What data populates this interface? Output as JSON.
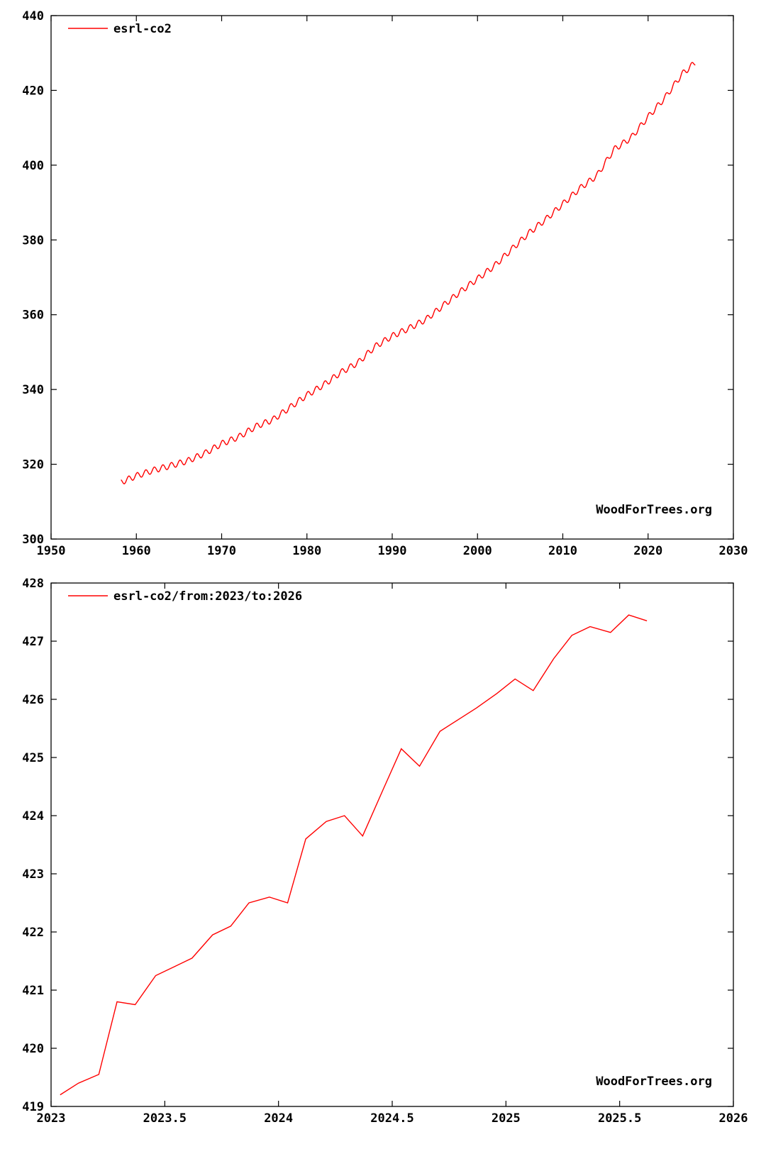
{
  "chart_data": [
    {
      "type": "line",
      "title": "",
      "xlabel": "",
      "ylabel": "",
      "xlim": [
        1950,
        2030
      ],
      "ylim": [
        300,
        440
      ],
      "x_ticks": [
        1950,
        1960,
        1970,
        1980,
        1990,
        2000,
        2010,
        2020,
        2030
      ],
      "x_tick_labels": [
        "1950",
        "1960",
        "1970",
        "1980",
        "1990",
        "2000",
        "2010",
        "2020",
        "2030"
      ],
      "y_ticks": [
        300,
        320,
        340,
        360,
        380,
        400,
        420,
        440
      ],
      "y_tick_labels": [
        "300",
        "320",
        "340",
        "360",
        "380",
        "400",
        "420",
        "440"
      ],
      "grid": false,
      "legend_position": "top-left",
      "watermark": "WoodForTrees.org",
      "series": [
        {
          "name": "esrl-co2",
          "color": "#ff0000",
          "seasonal_amplitude": 0.8,
          "x": [
            1958.2,
            1960,
            1962,
            1964,
            1966,
            1968,
            1970,
            1972,
            1974,
            1976,
            1978,
            1980,
            1982,
            1984,
            1986,
            1988,
            1990,
            1992,
            1994,
            1996,
            1998,
            2000,
            2002,
            2004,
            2006,
            2008,
            2010,
            2012,
            2014,
            2016,
            2018,
            2020,
            2022,
            2024,
            2025.6
          ],
          "y": [
            315.2,
            316.9,
            318.4,
            319.6,
            320.9,
            322.9,
            325.5,
            327.3,
            330.1,
            331.9,
            335.2,
            338.5,
            341.3,
            344.6,
            347.2,
            351.5,
            354.3,
            356.4,
            358.8,
            362.5,
            366.2,
            369.6,
            373.1,
            377.5,
            381.8,
            385.5,
            389.6,
            393.8,
            397.2,
            404.2,
            407.3,
            412.9,
            418.1,
            424.4,
            427.6
          ]
        }
      ]
    },
    {
      "type": "line",
      "title": "",
      "xlabel": "",
      "ylabel": "",
      "xlim": [
        2023,
        2026
      ],
      "ylim": [
        419,
        428
      ],
      "x_ticks": [
        2023,
        2023.5,
        2024,
        2024.5,
        2025,
        2025.5,
        2026
      ],
      "x_tick_labels": [
        "2023",
        "2023.5",
        "2024",
        "2024.5",
        "2025",
        "2025.5",
        "2026"
      ],
      "y_ticks": [
        419,
        420,
        421,
        422,
        423,
        424,
        425,
        426,
        427,
        428
      ],
      "y_tick_labels": [
        "419",
        "420",
        "421",
        "422",
        "423",
        "424",
        "425",
        "426",
        "427",
        "428"
      ],
      "grid": false,
      "legend_position": "top-left",
      "watermark": "WoodForTrees.org",
      "series": [
        {
          "name": "esrl-co2/from:2023/to:2026",
          "color": "#ff0000",
          "x": [
            2023.04,
            2023.12,
            2023.21,
            2023.29,
            2023.37,
            2023.46,
            2023.54,
            2023.62,
            2023.71,
            2023.79,
            2023.87,
            2023.96,
            2024.04,
            2024.12,
            2024.21,
            2024.29,
            2024.37,
            2024.46,
            2024.54,
            2024.62,
            2024.71,
            2024.79,
            2024.87,
            2024.96,
            2025.04,
            2025.12,
            2025.21,
            2025.29,
            2025.37,
            2025.46,
            2025.54,
            2025.62
          ],
          "y": [
            419.2,
            419.4,
            419.55,
            420.8,
            420.75,
            421.25,
            421.4,
            421.55,
            421.95,
            422.1,
            422.5,
            422.6,
            422.5,
            423.6,
            423.9,
            424.0,
            423.65,
            424.45,
            425.15,
            424.85,
            425.45,
            425.65,
            425.85,
            426.1,
            426.35,
            426.15,
            426.7,
            427.1,
            427.25,
            427.15,
            427.45,
            427.35
          ]
        }
      ]
    }
  ]
}
